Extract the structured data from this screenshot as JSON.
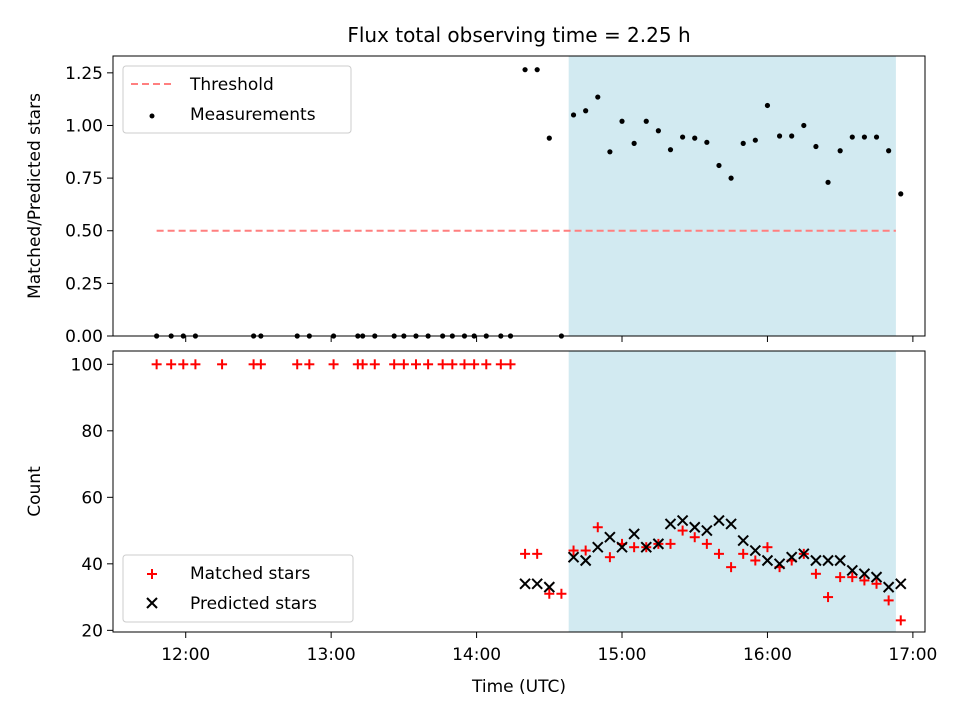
{
  "title": "Flux total observing time = 2.25 h",
  "xlabel": "Time (UTC)",
  "x_ticks": [
    "12:00",
    "13:00",
    "14:00",
    "15:00",
    "16:00",
    "17:00"
  ],
  "colors": {
    "threshold": "#ff7f7f",
    "measurements": "#000000",
    "matched": "#ff0000",
    "predicted": "#000000",
    "span": "#add8e6"
  },
  "chart_data": [
    {
      "type": "scatter",
      "ylabel": "Matched/Predicted stars",
      "xlim": [
        "11:30",
        "17:05"
      ],
      "ylim": [
        0,
        1.33
      ],
      "y_ticks": [
        "0.00",
        "0.25",
        "0.50",
        "0.75",
        "1.00",
        "1.25"
      ],
      "shaded_span": [
        "14:38",
        "16:53"
      ],
      "legend_position": "top-left",
      "threshold": {
        "name": "Threshold",
        "y": 0.5,
        "x_range": [
          "11:48",
          "16:53"
        ]
      },
      "series": [
        {
          "name": "Measurements",
          "points": [
            [
              "11:48",
              0
            ],
            [
              "11:54",
              0
            ],
            [
              "11:59",
              0
            ],
            [
              "12:04",
              0
            ],
            [
              "12:28",
              0
            ],
            [
              "12:31",
              0
            ],
            [
              "12:46",
              0
            ],
            [
              "12:51",
              0
            ],
            [
              "13:01",
              0
            ],
            [
              "13:11",
              0
            ],
            [
              "13:13",
              0
            ],
            [
              "13:18",
              0
            ],
            [
              "13:26",
              0
            ],
            [
              "13:30",
              0
            ],
            [
              "13:35",
              0
            ],
            [
              "13:40",
              0
            ],
            [
              "13:46",
              0
            ],
            [
              "13:50",
              0
            ],
            [
              "13:55",
              0
            ],
            [
              "13:59",
              0
            ],
            [
              "14:04",
              0
            ],
            [
              "14:10",
              0
            ],
            [
              "14:14",
              0
            ],
            [
              "14:20",
              1.265
            ],
            [
              "14:25",
              1.265
            ],
            [
              "14:30",
              0.94
            ],
            [
              "14:35",
              0.0
            ],
            [
              "14:40",
              1.05
            ],
            [
              "14:45",
              1.07
            ],
            [
              "14:50",
              1.135
            ],
            [
              "14:55",
              0.875
            ],
            [
              "15:00",
              1.02
            ],
            [
              "15:05",
              0.915
            ],
            [
              "15:10",
              1.02
            ],
            [
              "15:15",
              0.975
            ],
            [
              "15:20",
              0.885
            ],
            [
              "15:25",
              0.945
            ],
            [
              "15:30",
              0.94
            ],
            [
              "15:35",
              0.92
            ],
            [
              "15:40",
              0.81
            ],
            [
              "15:45",
              0.75
            ],
            [
              "15:50",
              0.915
            ],
            [
              "15:55",
              0.93
            ],
            [
              "16:00",
              1.095
            ],
            [
              "16:05",
              0.95
            ],
            [
              "16:10",
              0.95
            ],
            [
              "16:15",
              1.0
            ],
            [
              "16:20",
              0.9
            ],
            [
              "16:25",
              0.73
            ],
            [
              "16:30",
              0.88
            ],
            [
              "16:35",
              0.945
            ],
            [
              "16:40",
              0.945
            ],
            [
              "16:45",
              0.945
            ],
            [
              "16:50",
              0.88
            ],
            [
              "16:55",
              0.675
            ]
          ]
        }
      ]
    },
    {
      "type": "scatter",
      "ylabel": "Count",
      "xlim": [
        "11:30",
        "17:05"
      ],
      "ylim": [
        19.5,
        104
      ],
      "y_ticks": [
        "20",
        "40",
        "60",
        "80",
        "100"
      ],
      "shaded_span": [
        "14:38",
        "16:53"
      ],
      "legend_position": "bottom-left",
      "series": [
        {
          "name": "Matched stars",
          "points": [
            [
              "11:48",
              100
            ],
            [
              "11:54",
              100
            ],
            [
              "11:59",
              100
            ],
            [
              "12:04",
              100
            ],
            [
              "12:15",
              100
            ],
            [
              "12:28",
              100
            ],
            [
              "12:31",
              100
            ],
            [
              "12:46",
              100
            ],
            [
              "12:51",
              100
            ],
            [
              "13:01",
              100
            ],
            [
              "13:11",
              100
            ],
            [
              "13:13",
              100
            ],
            [
              "13:18",
              100
            ],
            [
              "13:26",
              100
            ],
            [
              "13:30",
              100
            ],
            [
              "13:35",
              100
            ],
            [
              "13:40",
              100
            ],
            [
              "13:46",
              100
            ],
            [
              "13:50",
              100
            ],
            [
              "13:55",
              100
            ],
            [
              "13:59",
              100
            ],
            [
              "14:04",
              100
            ],
            [
              "14:10",
              100
            ],
            [
              "14:14",
              100
            ],
            [
              "14:20",
              43
            ],
            [
              "14:25",
              43
            ],
            [
              "14:30",
              31
            ],
            [
              "14:35",
              31
            ],
            [
              "14:40",
              44
            ],
            [
              "14:45",
              44
            ],
            [
              "14:50",
              51
            ],
            [
              "14:55",
              42
            ],
            [
              "15:00",
              46
            ],
            [
              "15:05",
              45
            ],
            [
              "15:10",
              45
            ],
            [
              "15:15",
              46
            ],
            [
              "15:20",
              46
            ],
            [
              "15:25",
              50
            ],
            [
              "15:30",
              48
            ],
            [
              "15:35",
              46
            ],
            [
              "15:40",
              43
            ],
            [
              "15:45",
              39
            ],
            [
              "15:50",
              43
            ],
            [
              "15:55",
              41
            ],
            [
              "16:00",
              45
            ],
            [
              "16:05",
              39
            ],
            [
              "16:10",
              41
            ],
            [
              "16:15",
              43
            ],
            [
              "16:20",
              37
            ],
            [
              "16:25",
              30
            ],
            [
              "16:30",
              36
            ],
            [
              "16:35",
              36
            ],
            [
              "16:40",
              35
            ],
            [
              "16:45",
              34
            ],
            [
              "16:50",
              29
            ],
            [
              "16:55",
              23
            ]
          ]
        },
        {
          "name": "Predicted stars",
          "points": [
            [
              "14:20",
              34
            ],
            [
              "14:25",
              34
            ],
            [
              "14:30",
              33
            ],
            [
              "14:40",
              42
            ],
            [
              "14:45",
              41
            ],
            [
              "14:50",
              45
            ],
            [
              "14:55",
              48
            ],
            [
              "15:00",
              45
            ],
            [
              "15:05",
              49
            ],
            [
              "15:10",
              45
            ],
            [
              "15:15",
              46
            ],
            [
              "15:20",
              52
            ],
            [
              "15:25",
              53
            ],
            [
              "15:30",
              51
            ],
            [
              "15:35",
              50
            ],
            [
              "15:40",
              53
            ],
            [
              "15:45",
              52
            ],
            [
              "15:50",
              47
            ],
            [
              "15:55",
              44
            ],
            [
              "16:00",
              41
            ],
            [
              "16:05",
              40
            ],
            [
              "16:10",
              42
            ],
            [
              "16:15",
              43
            ],
            [
              "16:20",
              41
            ],
            [
              "16:25",
              41
            ],
            [
              "16:30",
              41
            ],
            [
              "16:35",
              38
            ],
            [
              "16:40",
              37
            ],
            [
              "16:45",
              36
            ],
            [
              "16:50",
              33
            ],
            [
              "16:55",
              34
            ]
          ]
        }
      ]
    }
  ]
}
